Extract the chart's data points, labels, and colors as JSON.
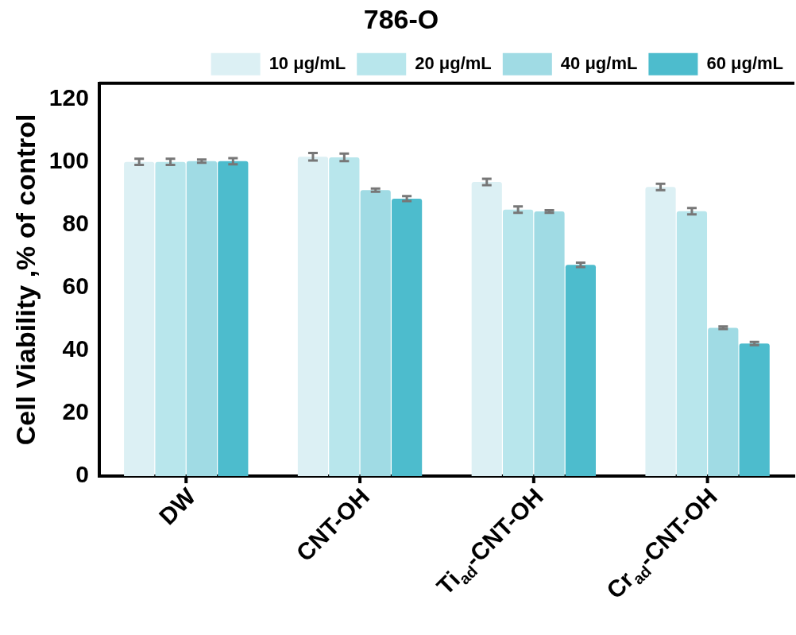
{
  "chart_data": {
    "type": "bar",
    "title": "786-O",
    "ylabel": "Cell Viability ,% of control",
    "categories": [
      "DW",
      "CNT-OH",
      "Ti$_{ad}$-CNT-OH",
      "Cr$_{ad}$-CNT-OH"
    ],
    "series": [
      {
        "name": "10 μg/mL",
        "color": "#dcf0f4",
        "values": [
          100,
          101.6,
          93.6,
          92
        ],
        "errors": [
          1,
          1.2,
          1,
          1
        ]
      },
      {
        "name": "20 μg/mL",
        "color": "#b8e6ec",
        "values": [
          100,
          101.4,
          84.8,
          84.3
        ],
        "errors": [
          1,
          1.2,
          1,
          1
        ]
      },
      {
        "name": "40 μg/mL",
        "color": "#a0dbe4",
        "values": [
          100.2,
          91,
          84.2,
          47.2
        ],
        "errors": [
          0.5,
          0.5,
          0.4,
          0.4
        ]
      },
      {
        "name": "60 μg/mL",
        "color": "#4dbccd",
        "values": [
          100.2,
          88.3,
          67.2,
          42.2
        ],
        "errors": [
          1,
          0.8,
          0.7,
          0.5
        ]
      }
    ],
    "ylim": [
      0,
      125
    ],
    "yticks": [
      0,
      20,
      40,
      60,
      80,
      100,
      120
    ],
    "grid": false,
    "legend": "top"
  }
}
